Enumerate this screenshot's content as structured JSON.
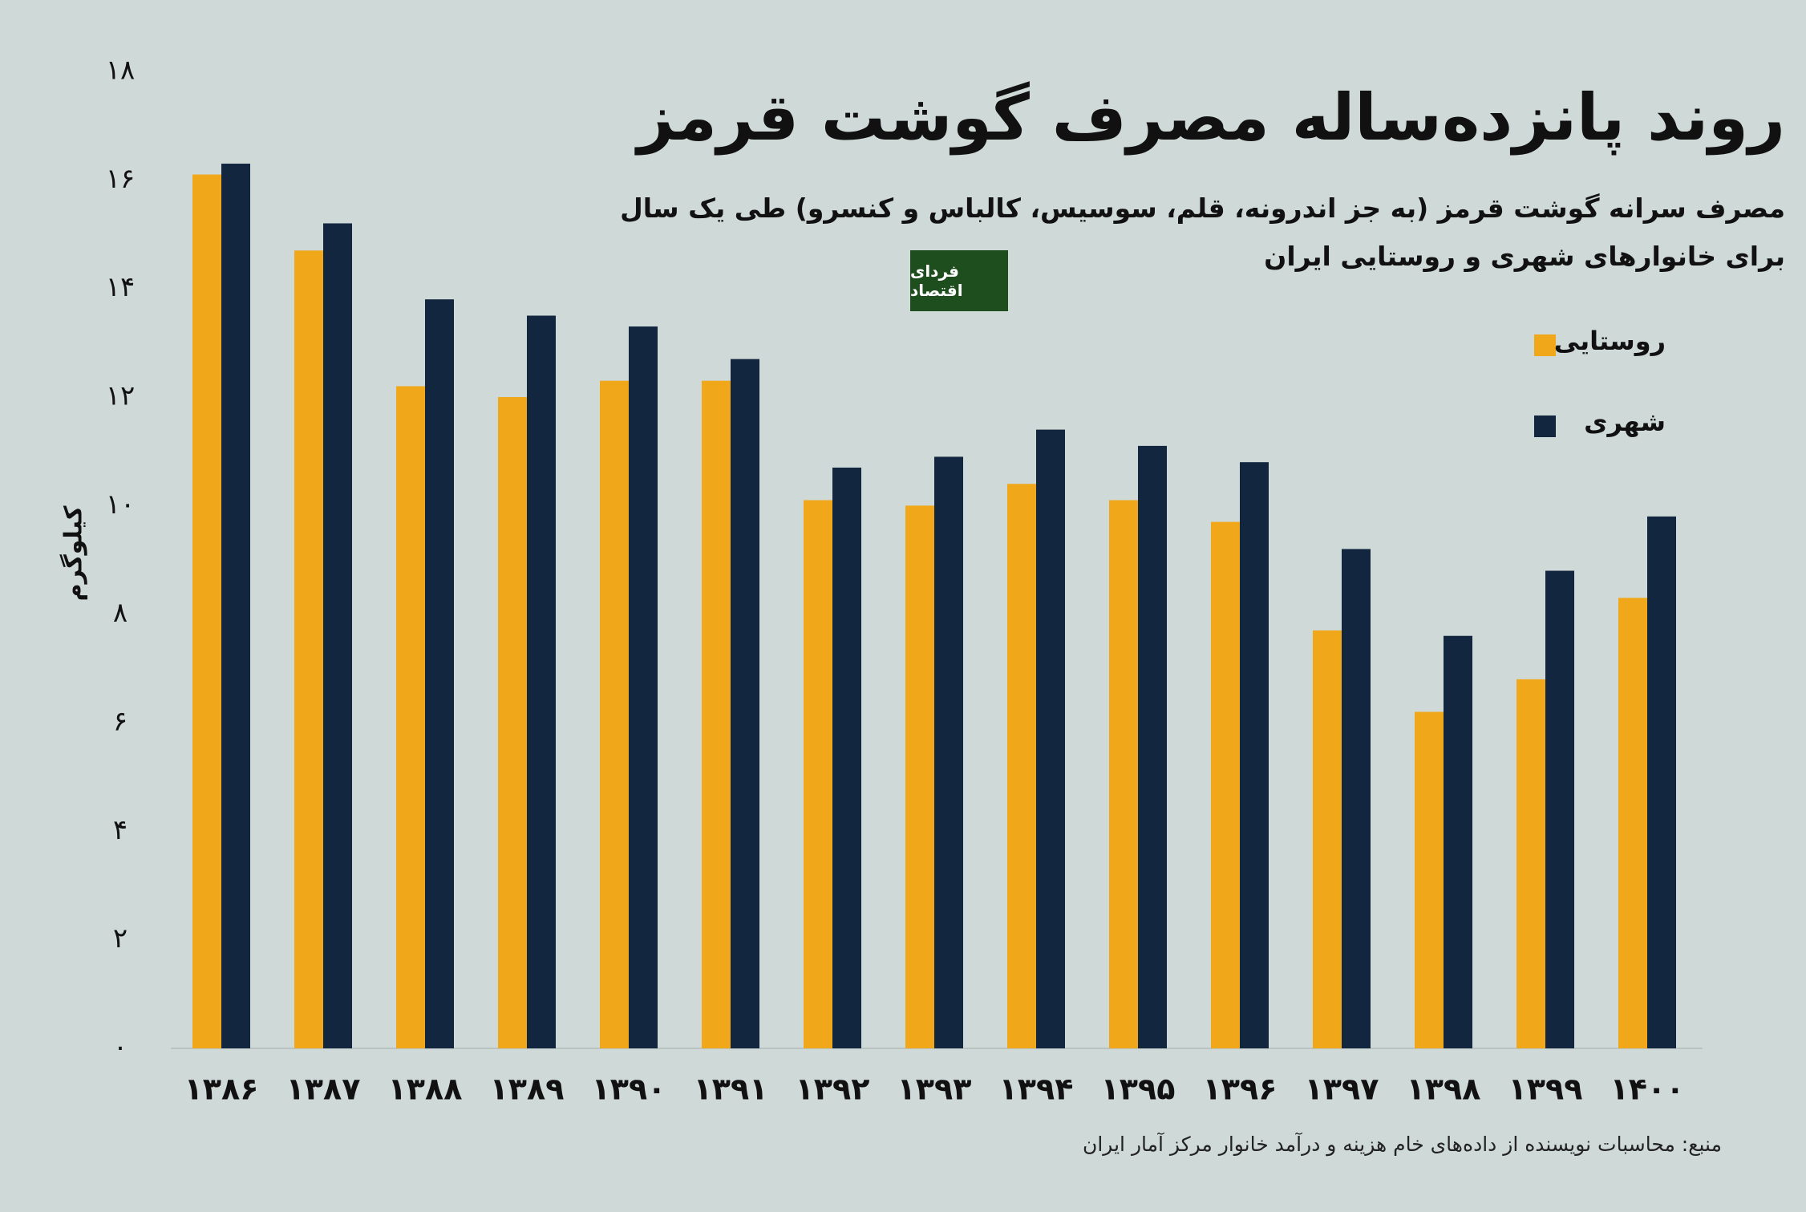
{
  "chart_data": {
    "type": "bar",
    "title": "روند پانزده‌ساله مصرف گوشت قرمز",
    "subtitle": [
      "مصرف سرانه گوشت قرمز (به جز اندرونه، قلم، سوسیس، کالباس و کنسرو) طی یک سال",
      "برای خانوارهای شهری و روستایی ایران"
    ],
    "logo": "فردای اقتصاد",
    "y_label": "کیلوگرم",
    "source": "منبع: محاسبات نویسنده از داده‌های خام هزینه و درآمد خانوار مرکز آمار ایران",
    "categories": [
      "۱۳۸۶",
      "۱۳۸۷",
      "۱۳۸۸",
      "۱۳۸۹",
      "۱۳۹۰",
      "۱۳۹۱",
      "۱۳۹۲",
      "۱۳۹۳",
      "۱۳۹۴",
      "۱۳۹۵",
      "۱۳۹۶",
      "۱۳۹۷",
      "۱۳۹۸",
      "۱۳۹۹",
      "۱۴۰۰"
    ],
    "series": [
      {
        "name": "روستایی",
        "color": "#f0a81a",
        "values": [
          16.1,
          14.7,
          12.2,
          12.0,
          12.3,
          12.3,
          10.1,
          10.0,
          10.4,
          10.1,
          9.7,
          7.7,
          6.2,
          6.8,
          8.3
        ]
      },
      {
        "name": "شهری",
        "color": "#13263f",
        "values": [
          16.3,
          15.2,
          13.8,
          13.5,
          13.3,
          12.7,
          10.7,
          10.9,
          11.4,
          11.1,
          10.8,
          9.2,
          7.6,
          8.8,
          9.8
        ]
      }
    ],
    "ylim": [
      0,
      18
    ],
    "yticks": [
      {
        "value": 0,
        "label": "۰"
      },
      {
        "value": 2,
        "label": "۲"
      },
      {
        "value": 4,
        "label": "۴"
      },
      {
        "value": 6,
        "label": "۶"
      },
      {
        "value": 8,
        "label": "۸"
      },
      {
        "value": 10,
        "label": "۱۰"
      },
      {
        "value": 12,
        "label": "۱۲"
      },
      {
        "value": 14,
        "label": "۱۴"
      },
      {
        "value": 16,
        "label": "۱۶"
      },
      {
        "value": 18,
        "label": "۱۸"
      }
    ],
    "legend": "right"
  }
}
